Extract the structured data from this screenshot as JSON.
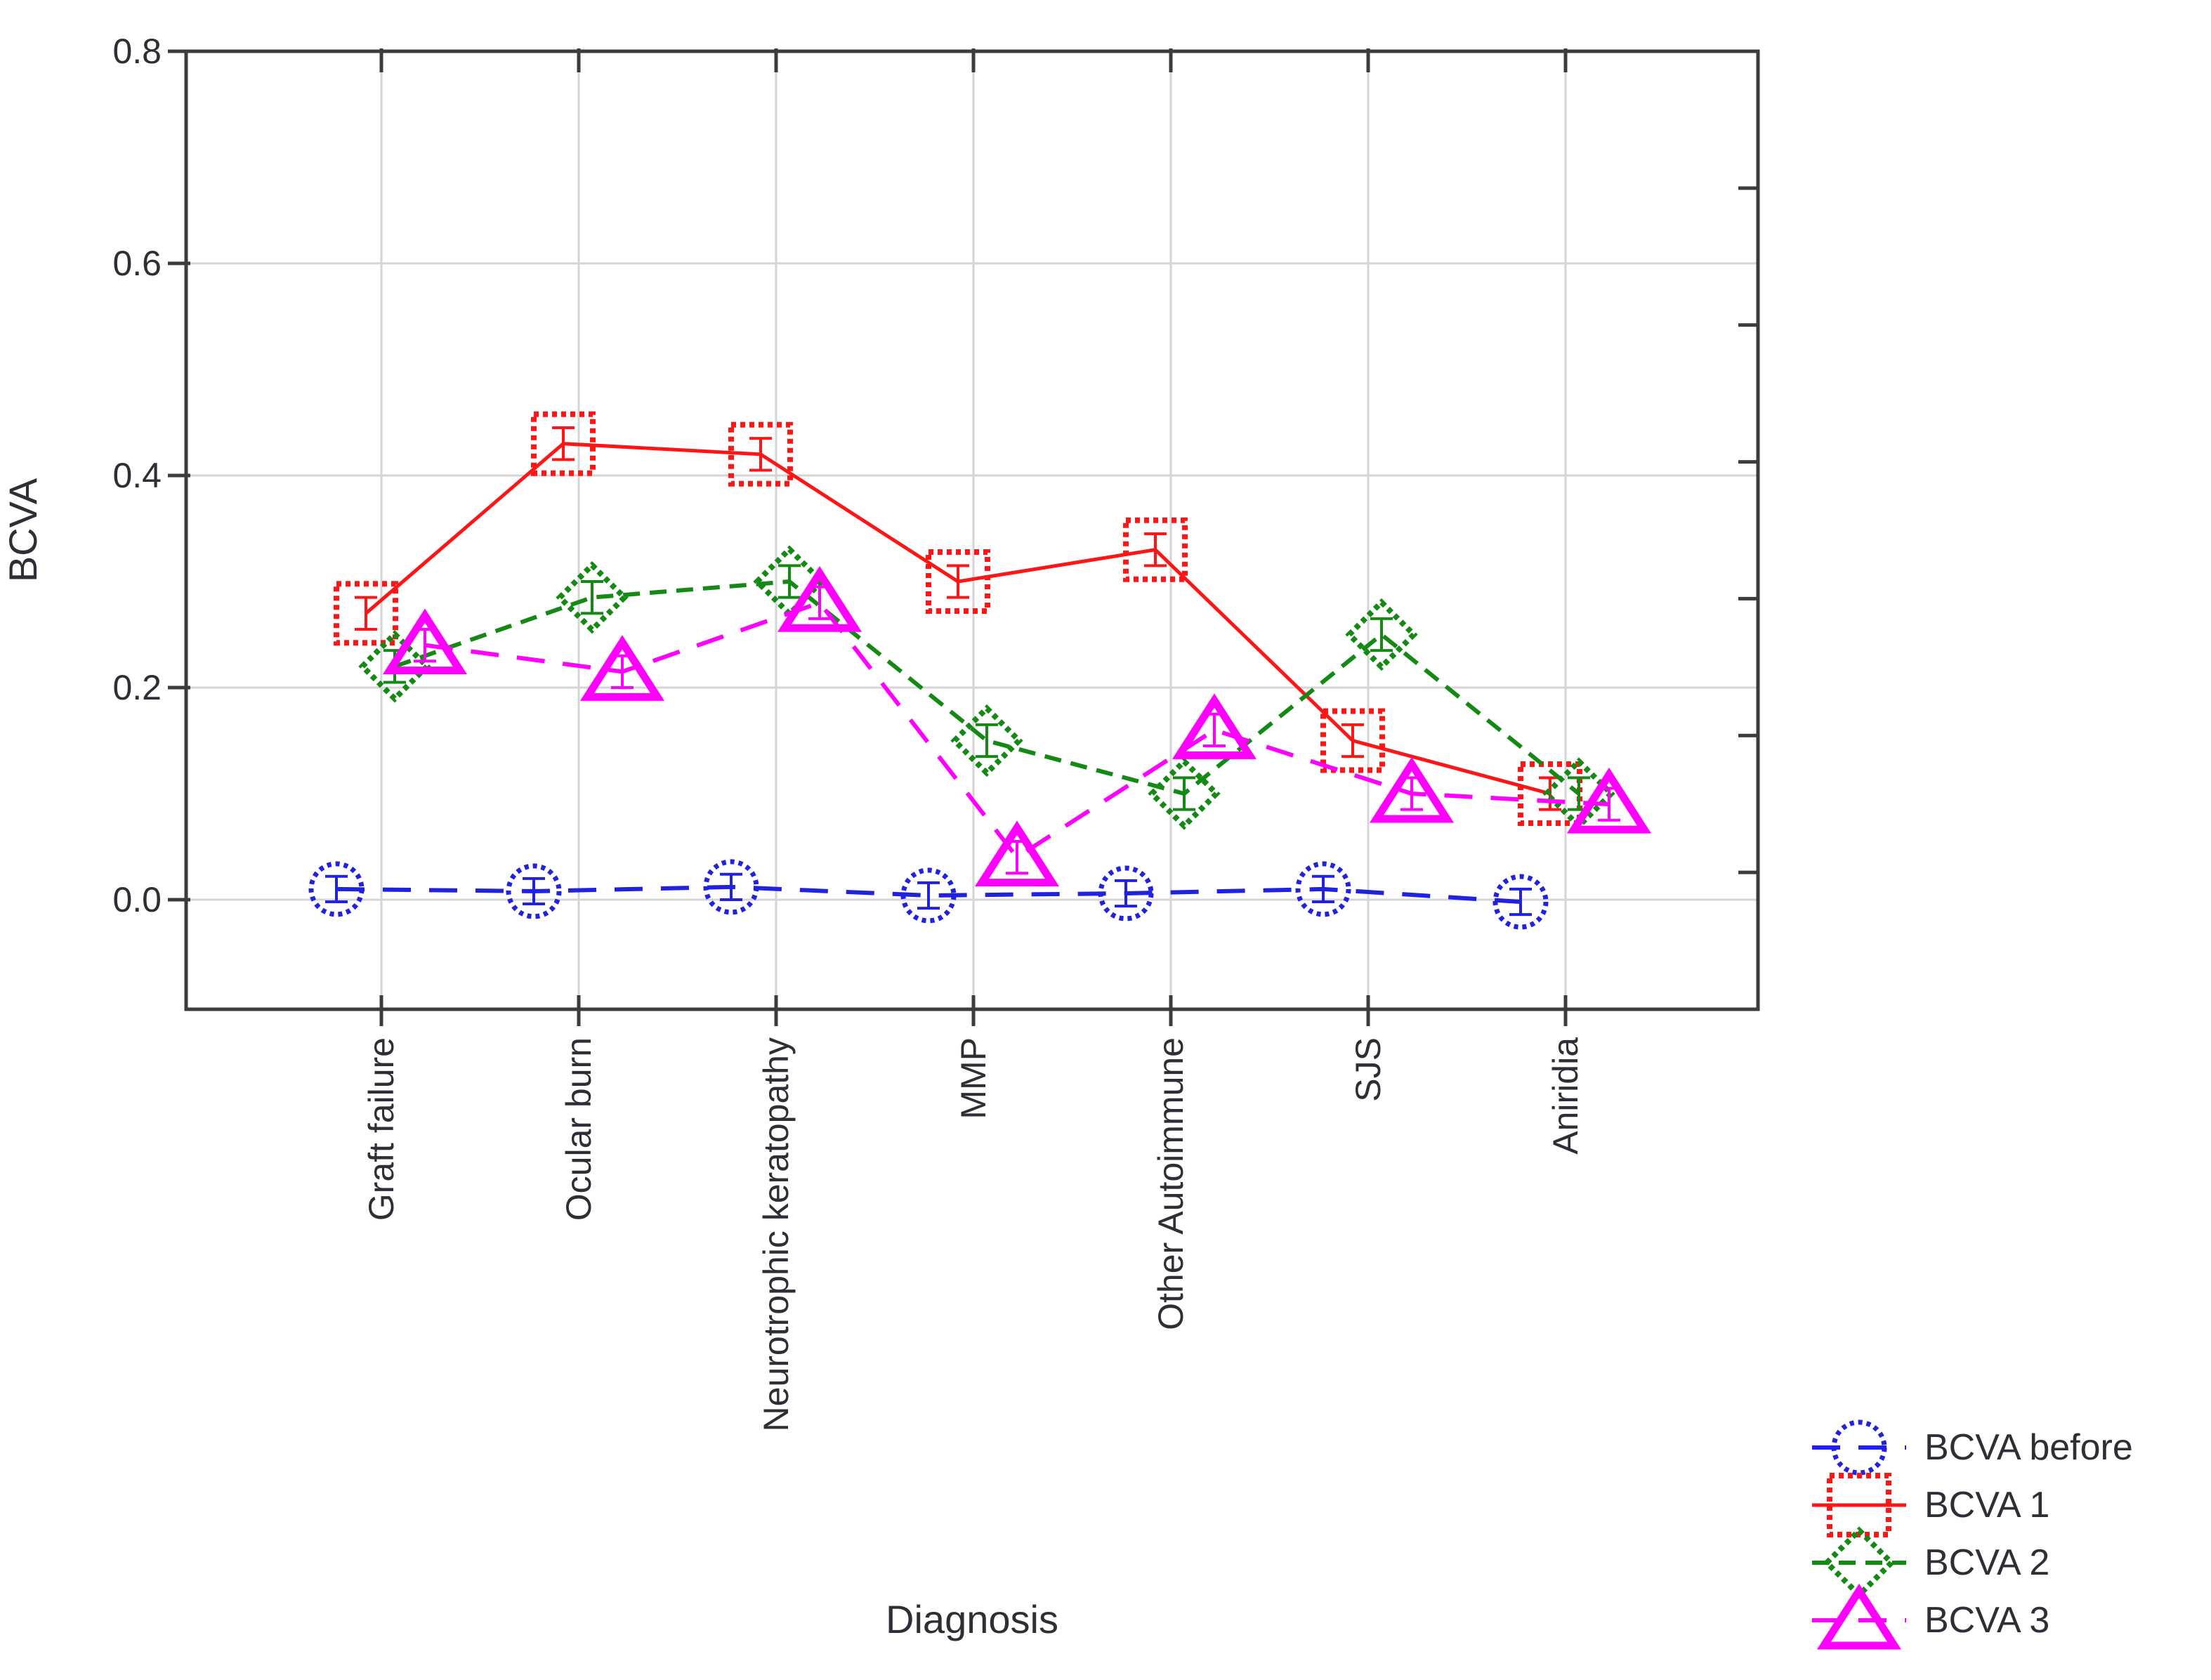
{
  "figure": {
    "background": "#ffffff",
    "border_color": "#3c3c3c",
    "grid_color": "#d5d5d5",
    "text_color": "#2e2e36"
  },
  "chart_data": {
    "type": "line",
    "title": "",
    "xlabel": "Diagnosis",
    "ylabel": "BCVA",
    "categories": [
      "Graft failure",
      "Ocular burn",
      "Neurotrophic keratopathy",
      "MMP",
      "Other Autoimmune",
      "SJS",
      "Aniridia"
    ],
    "ylim": [
      -0.1033,
      0.8
    ],
    "yticks": [
      0.0,
      0.2,
      0.4,
      0.6,
      0.8
    ],
    "ytick_labels": [
      "0.0",
      "0.2",
      "0.4",
      "0.6",
      "0.8"
    ],
    "grid": true,
    "legend_position": "bottom-right",
    "series": [
      {
        "name": "BCVA before",
        "color": "#2121e0",
        "marker": "circle",
        "marker_outline": "dotted",
        "line_style": "dashed",
        "values": [
          0.01,
          0.008,
          0.012,
          0.004,
          0.006,
          0.01,
          -0.002
        ],
        "error": 0.012
      },
      {
        "name": "BCVA 1",
        "color": "#ff1515",
        "marker": "square",
        "marker_outline": "dotted",
        "line_style": "solid",
        "values": [
          0.27,
          0.43,
          0.42,
          0.3,
          0.33,
          0.15,
          0.1
        ],
        "error": 0.015
      },
      {
        "name": "BCVA 2",
        "color": "#148a14",
        "marker": "diamond",
        "marker_outline": "dotted",
        "line_style": "dashed-short",
        "values": [
          0.22,
          0.285,
          0.3,
          0.15,
          0.1,
          0.25,
          0.1
        ],
        "error": 0.015
      },
      {
        "name": "BCVA 3",
        "color": "#ff00ff",
        "marker": "triangle",
        "marker_outline": "solid",
        "line_style": "dashed",
        "values": [
          0.24,
          0.215,
          0.28,
          0.04,
          0.16,
          0.1,
          0.09
        ],
        "error": 0.015
      }
    ]
  }
}
